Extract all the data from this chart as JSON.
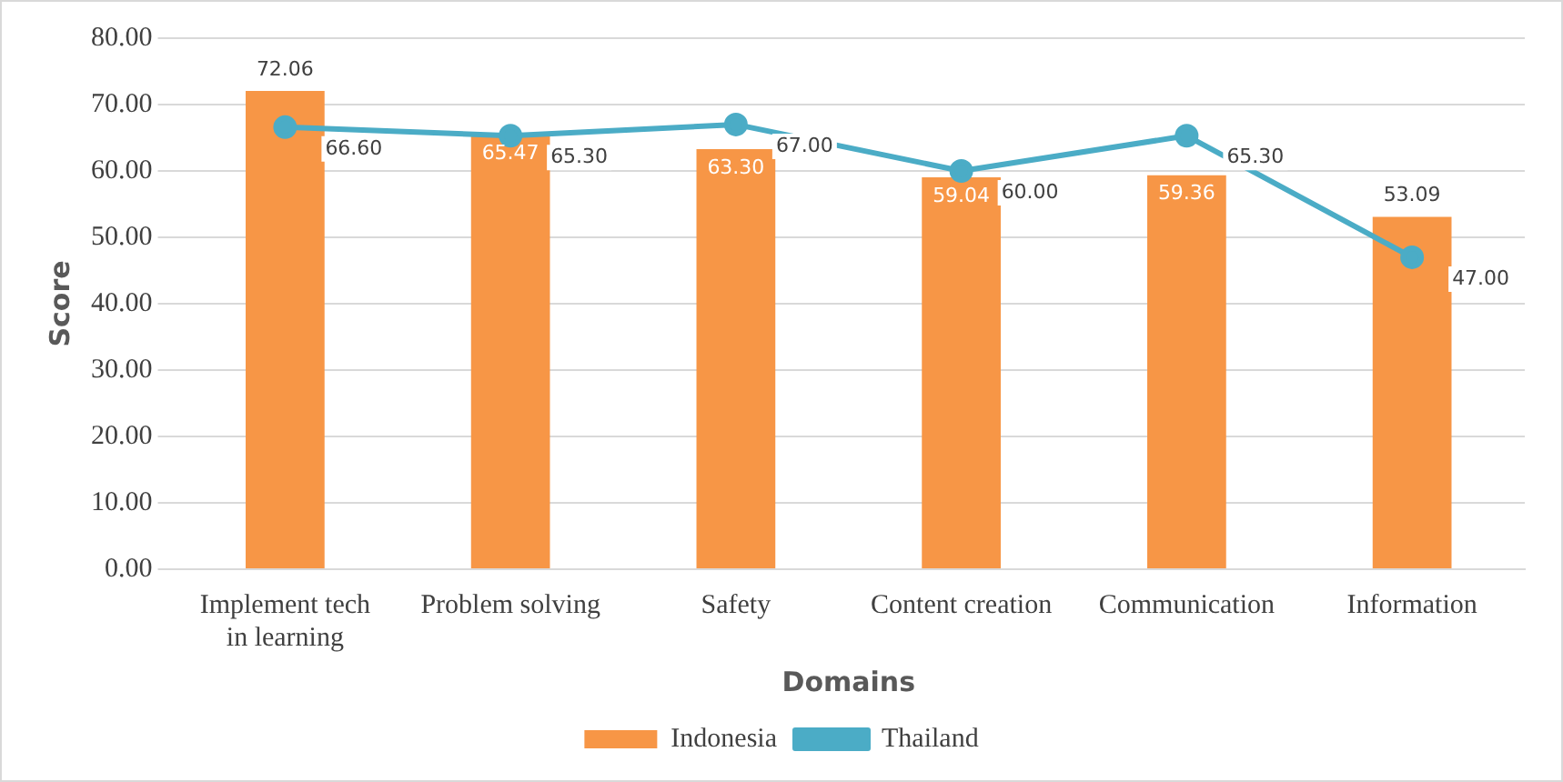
{
  "chart_data": {
    "type": "bar",
    "xlabel": "Domains",
    "ylabel": "Score",
    "categories": [
      "Implement tech in learning",
      "Problem solving",
      "Safety",
      "Content creation",
      "Communication",
      "Information"
    ],
    "series": [
      {
        "name": "Indonesia",
        "color": "#f79646",
        "values": [
          72.06,
          65.47,
          63.3,
          59.04,
          59.36,
          53.09
        ],
        "value_labels": [
          "72.06",
          "65.47",
          "63.30",
          "59.04",
          "59.36",
          "53.09"
        ]
      },
      {
        "name": "Thailand",
        "type": "line",
        "color": "#4bacc6",
        "values": [
          66.6,
          65.3,
          67.0,
          60.0,
          65.3,
          47.0
        ],
        "value_labels": [
          "66.60",
          "65.30",
          "67.00",
          "60.00",
          "65.30",
          "47.00"
        ],
        "marker": "circle"
      }
    ],
    "ylim": [
      0,
      80
    ],
    "yticks": [
      {
        "value": 0,
        "label": "0.00"
      },
      {
        "value": 10,
        "label": "10.00"
      },
      {
        "value": 20,
        "label": "20.00"
      },
      {
        "value": 30,
        "label": "30.00"
      },
      {
        "value": 40,
        "label": "40.00"
      },
      {
        "value": 50,
        "label": "50.00"
      },
      {
        "value": 60,
        "label": "60.00"
      },
      {
        "value": 70,
        "label": "70.00"
      },
      {
        "value": 80,
        "label": "80.00"
      }
    ],
    "grid": "y",
    "legend": "bottom"
  }
}
